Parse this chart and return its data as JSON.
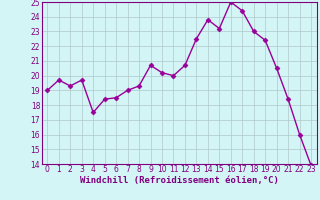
{
  "x": [
    0,
    1,
    2,
    3,
    4,
    5,
    6,
    7,
    8,
    9,
    10,
    11,
    12,
    13,
    14,
    15,
    16,
    17,
    18,
    19,
    20,
    21,
    22,
    23
  ],
  "y": [
    19.0,
    19.7,
    19.3,
    19.7,
    17.5,
    18.4,
    18.5,
    19.0,
    19.3,
    20.7,
    20.2,
    20.0,
    20.7,
    22.5,
    23.8,
    23.2,
    25.0,
    24.4,
    23.0,
    22.4,
    20.5,
    18.4,
    16.0,
    13.9
  ],
  "line_color": "#990099",
  "marker": "D",
  "marker_size": 2.5,
  "bg_color": "#d4f5f5",
  "grid_color": "#b0c8c8",
  "ylim": [
    14,
    25
  ],
  "xlim_min": -0.5,
  "xlim_max": 23.5,
  "yticks": [
    14,
    15,
    16,
    17,
    18,
    19,
    20,
    21,
    22,
    23,
    24,
    25
  ],
  "xticks": [
    0,
    1,
    2,
    3,
    4,
    5,
    6,
    7,
    8,
    9,
    10,
    11,
    12,
    13,
    14,
    15,
    16,
    17,
    18,
    19,
    20,
    21,
    22,
    23
  ],
  "tick_color": "#800080",
  "axis_color": "#800080",
  "xlabel": "Windchill (Refroidissement éolien,°C)",
  "xlabel_fontsize": 6.5,
  "tick_fontsize": 5.5,
  "linewidth": 1.0
}
